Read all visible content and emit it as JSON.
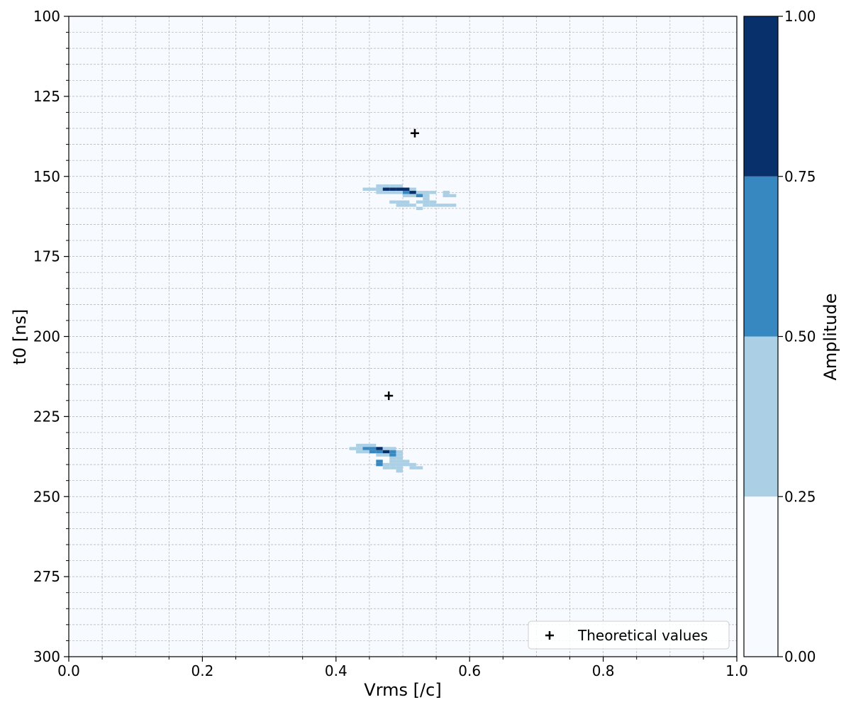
{
  "chart_data": {
    "type": "heatmap",
    "title": "",
    "xlabel": "Vrms [/c]",
    "ylabel": "t0 [ns]",
    "xlim": [
      0.0,
      1.0
    ],
    "ylim": [
      300,
      100
    ],
    "y_inverted": true,
    "grid": true,
    "x_ticks": [
      "0.0",
      "0.2",
      "0.4",
      "0.6",
      "0.8",
      "1.0"
    ],
    "y_ticks": [
      "100",
      "125",
      "150",
      "175",
      "200",
      "225",
      "250",
      "275",
      "300"
    ],
    "colorbar": {
      "label": "Amplitude",
      "ticks": [
        "0.00",
        "0.25",
        "0.50",
        "0.75",
        "1.00"
      ],
      "levels": [
        0.0,
        0.25,
        0.5,
        0.75,
        1.0
      ],
      "colors": [
        "#f7fbff",
        "#abd0e6",
        "#3787c0",
        "#08306b"
      ]
    },
    "grid_cell": {
      "dv": 0.01,
      "dt": 1.0
    },
    "cells": [
      [
        0.46,
        153,
        1
      ],
      [
        0.47,
        153,
        1
      ],
      [
        0.48,
        153,
        1
      ],
      [
        0.49,
        153,
        1
      ],
      [
        0.44,
        154,
        1
      ],
      [
        0.45,
        154,
        1
      ],
      [
        0.46,
        154,
        1
      ],
      [
        0.47,
        154,
        3
      ],
      [
        0.48,
        154,
        3
      ],
      [
        0.49,
        154,
        3
      ],
      [
        0.5,
        154,
        3
      ],
      [
        0.51,
        154,
        1
      ],
      [
        0.46,
        155,
        1
      ],
      [
        0.47,
        155,
        1
      ],
      [
        0.48,
        155,
        1
      ],
      [
        0.49,
        155,
        1
      ],
      [
        0.5,
        155,
        2
      ],
      [
        0.51,
        155,
        3
      ],
      [
        0.52,
        155,
        1
      ],
      [
        0.53,
        155,
        1
      ],
      [
        0.54,
        155,
        1
      ],
      [
        0.56,
        155,
        1
      ],
      [
        0.5,
        156,
        1
      ],
      [
        0.51,
        156,
        1
      ],
      [
        0.52,
        156,
        2
      ],
      [
        0.53,
        156,
        1
      ],
      [
        0.56,
        156,
        1
      ],
      [
        0.57,
        156,
        1
      ],
      [
        0.53,
        157,
        1
      ],
      [
        0.48,
        158,
        1
      ],
      [
        0.49,
        158,
        1
      ],
      [
        0.5,
        158,
        1
      ],
      [
        0.52,
        158,
        1
      ],
      [
        0.53,
        158,
        1
      ],
      [
        0.54,
        158,
        1
      ],
      [
        0.49,
        159,
        1
      ],
      [
        0.5,
        159,
        1
      ],
      [
        0.51,
        159,
        1
      ],
      [
        0.53,
        159,
        1
      ],
      [
        0.54,
        159,
        1
      ],
      [
        0.55,
        159,
        1
      ],
      [
        0.56,
        159,
        1
      ],
      [
        0.57,
        159,
        1
      ],
      [
        0.52,
        160,
        1
      ],
      [
        0.43,
        234,
        1
      ],
      [
        0.44,
        234,
        1
      ],
      [
        0.45,
        234,
        1
      ],
      [
        0.42,
        235,
        1
      ],
      [
        0.43,
        235,
        1
      ],
      [
        0.44,
        235,
        2
      ],
      [
        0.45,
        235,
        2
      ],
      [
        0.46,
        235,
        3
      ],
      [
        0.47,
        235,
        1
      ],
      [
        0.48,
        235,
        1
      ],
      [
        0.43,
        236,
        1
      ],
      [
        0.44,
        236,
        1
      ],
      [
        0.45,
        236,
        2
      ],
      [
        0.46,
        236,
        2
      ],
      [
        0.47,
        236,
        3
      ],
      [
        0.48,
        236,
        2
      ],
      [
        0.49,
        236,
        1
      ],
      [
        0.46,
        237,
        1
      ],
      [
        0.47,
        237,
        1
      ],
      [
        0.48,
        237,
        2
      ],
      [
        0.49,
        237,
        1
      ],
      [
        0.48,
        238,
        1
      ],
      [
        0.49,
        238,
        1
      ],
      [
        0.46,
        239,
        2
      ],
      [
        0.48,
        239,
        1
      ],
      [
        0.49,
        239,
        1
      ],
      [
        0.5,
        239,
        1
      ],
      [
        0.46,
        240,
        2
      ],
      [
        0.47,
        240,
        1
      ],
      [
        0.48,
        240,
        1
      ],
      [
        0.49,
        240,
        1
      ],
      [
        0.5,
        240,
        1
      ],
      [
        0.51,
        240,
        1
      ],
      [
        0.47,
        241,
        1
      ],
      [
        0.48,
        241,
        1
      ],
      [
        0.49,
        241,
        1
      ],
      [
        0.51,
        241,
        1
      ],
      [
        0.52,
        241,
        1
      ],
      [
        0.49,
        242,
        1
      ]
    ],
    "theoretical_points": [
      {
        "x": 0.518,
        "y": 136.5
      },
      {
        "x": 0.479,
        "y": 218.5
      }
    ],
    "legend": {
      "label": "Theoretical values",
      "position": "lower-right"
    }
  }
}
